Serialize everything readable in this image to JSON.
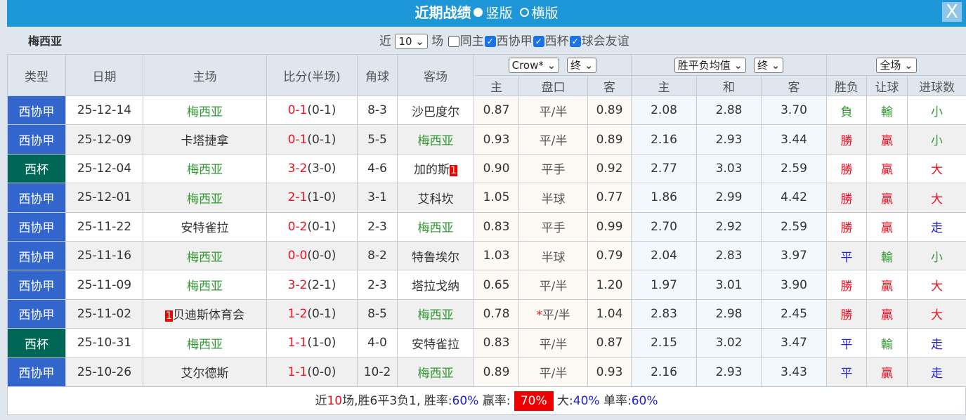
{
  "title": {
    "label": "近期战绩",
    "opt1": "竖版",
    "opt2": "横版",
    "close": "X"
  },
  "filter": {
    "team": "梅西亚",
    "near": "近",
    "count": "10",
    "unit": "场",
    "same_home": "同主",
    "leagues": [
      "西协甲",
      "西杯",
      "球会友谊"
    ]
  },
  "headers": {
    "type": "类型",
    "date": "日期",
    "home": "主场",
    "score": "比分(半场)",
    "corner": "角球",
    "away": "客场",
    "company": "Crow*",
    "final1": "终",
    "ox_type": "胜平负均值",
    "final2": "终",
    "period": "全场",
    "sub": [
      "主",
      "盘口",
      "客",
      "主",
      "和",
      "客",
      "胜负",
      "让球",
      "进球数"
    ]
  },
  "rows": [
    {
      "type": "西协甲",
      "cup": false,
      "date": "25-12-14",
      "home": "梅西亚",
      "hg": true,
      "hcard": "",
      "ft": "0-1",
      "ht": "(0-1)",
      "corner": "8-3",
      "away": "沙巴度尔",
      "ag": false,
      "acard": "",
      "ho": "0.87",
      "star": "",
      "line": "平/半",
      "ao": "0.89",
      "w": "2.08",
      "d": "2.88",
      "l": "3.70",
      "res": "負",
      "rc": "g",
      "hr": "輸",
      "hrc": "g",
      "ou": "小",
      "ouc": "g"
    },
    {
      "type": "西协甲",
      "cup": false,
      "date": "25-12-09",
      "home": "卡塔捷拿",
      "hg": false,
      "hcard": "",
      "ft": "0-1",
      "ht": "(0-1)",
      "corner": "5-5",
      "away": "梅西亚",
      "ag": true,
      "acard": "",
      "ho": "0.93",
      "star": "",
      "line": "平/半",
      "ao": "0.89",
      "w": "2.16",
      "d": "2.93",
      "l": "3.44",
      "res": "勝",
      "rc": "r",
      "hr": "贏",
      "hrc": "r",
      "ou": "小",
      "ouc": "g"
    },
    {
      "type": "西杯",
      "cup": true,
      "date": "25-12-04",
      "home": "梅西亚",
      "hg": true,
      "hcard": "",
      "ft": "3-2",
      "ht": "(3-0)",
      "corner": "4-6",
      "away": "加的斯",
      "ag": false,
      "acard": "1",
      "ho": "0.90",
      "star": "",
      "line": "平手",
      "ao": "0.92",
      "w": "2.77",
      "d": "3.03",
      "l": "2.59",
      "res": "勝",
      "rc": "r",
      "hr": "贏",
      "hrc": "r",
      "ou": "大",
      "ouc": "r"
    },
    {
      "type": "西协甲",
      "cup": false,
      "date": "25-12-01",
      "home": "梅西亚",
      "hg": true,
      "hcard": "",
      "ft": "2-1",
      "ht": "(1-0)",
      "corner": "3-1",
      "away": "艾科坎",
      "ag": false,
      "acard": "",
      "ho": "1.05",
      "star": "",
      "line": "半球",
      "ao": "0.77",
      "w": "1.86",
      "d": "2.99",
      "l": "4.42",
      "res": "勝",
      "rc": "r",
      "hr": "贏",
      "hrc": "r",
      "ou": "大",
      "ouc": "r"
    },
    {
      "type": "西协甲",
      "cup": false,
      "date": "25-11-22",
      "home": "安特雀拉",
      "hg": false,
      "hcard": "",
      "ft": "0-2",
      "ht": "(0-1)",
      "corner": "2-3",
      "away": "梅西亚",
      "ag": true,
      "acard": "",
      "ho": "0.83",
      "star": "",
      "line": "平手",
      "ao": "0.99",
      "w": "2.70",
      "d": "2.92",
      "l": "2.59",
      "res": "勝",
      "rc": "r",
      "hr": "贏",
      "hrc": "r",
      "ou": "走",
      "ouc": "b"
    },
    {
      "type": "西协甲",
      "cup": false,
      "date": "25-11-16",
      "home": "梅西亚",
      "hg": true,
      "hcard": "",
      "ft": "0-0",
      "ht": "(0-0)",
      "corner": "8-2",
      "away": "特鲁埃尔",
      "ag": false,
      "acard": "",
      "ho": "1.03",
      "star": "",
      "line": "半球",
      "ao": "0.79",
      "w": "2.04",
      "d": "2.83",
      "l": "3.97",
      "res": "平",
      "rc": "b",
      "hr": "輸",
      "hrc": "g",
      "ou": "小",
      "ouc": "g"
    },
    {
      "type": "西协甲",
      "cup": false,
      "date": "25-11-09",
      "home": "梅西亚",
      "hg": true,
      "hcard": "",
      "ft": "3-2",
      "ht": "(2-1)",
      "corner": "2-3",
      "away": "塔拉戈纳",
      "ag": false,
      "acard": "",
      "ho": "0.65",
      "star": "",
      "line": "平/半",
      "ao": "1.20",
      "w": "1.97",
      "d": "3.01",
      "l": "3.90",
      "res": "勝",
      "rc": "r",
      "hr": "贏",
      "hrc": "r",
      "ou": "大",
      "ouc": "r"
    },
    {
      "type": "西协甲",
      "cup": false,
      "date": "25-11-02",
      "home": "贝迪斯体育会",
      "hg": false,
      "hcard": "1",
      "ft": "1-2",
      "ht": "(0-1)",
      "corner": "8-5",
      "away": "梅西亚",
      "ag": true,
      "acard": "",
      "ho": "0.78",
      "star": "*",
      "line": "平/半",
      "ao": "1.04",
      "w": "2.83",
      "d": "2.98",
      "l": "2.45",
      "res": "勝",
      "rc": "r",
      "hr": "贏",
      "hrc": "r",
      "ou": "大",
      "ouc": "r"
    },
    {
      "type": "西杯",
      "cup": true,
      "date": "25-10-31",
      "home": "梅西亚",
      "hg": true,
      "hcard": "",
      "ft": "1-1",
      "ht": "(1-0)",
      "corner": "4-0",
      "away": "安特雀拉",
      "ag": false,
      "acard": "",
      "ho": "0.83",
      "star": "",
      "line": "平/半",
      "ao": "0.87",
      "w": "2.15",
      "d": "3.02",
      "l": "3.47",
      "res": "平",
      "rc": "b",
      "hr": "輸",
      "hrc": "g",
      "ou": "走",
      "ouc": "b"
    },
    {
      "type": "西协甲",
      "cup": false,
      "date": "25-10-26",
      "home": "艾尔德斯",
      "hg": false,
      "hcard": "",
      "ft": "1-1",
      "ht": "(0-0)",
      "corner": "10-2",
      "away": "梅西亚",
      "ag": true,
      "acard": "",
      "ho": "0.89",
      "star": "",
      "line": "平/半",
      "ao": "0.93",
      "w": "2.16",
      "d": "2.93",
      "l": "3.43",
      "res": "平",
      "rc": "b",
      "hr": "贏",
      "hrc": "r",
      "ou": "走",
      "ouc": "b"
    }
  ],
  "footer": {
    "p1": "近",
    "n": "10",
    "p2": "场,胜6平3负1, 胜率:",
    "win": "60%",
    "p3": " 赢率:",
    "hwin": "70%",
    "p4": " 大:",
    "big": "40%",
    "p5": " 单率:",
    "odd": "60%"
  },
  "colors": {
    "title": "#1e97d8",
    "league": "#3366cc",
    "cup": "#006655",
    "win": "#ee1122",
    "lose": "#339933",
    "draw": "#2222dd"
  }
}
